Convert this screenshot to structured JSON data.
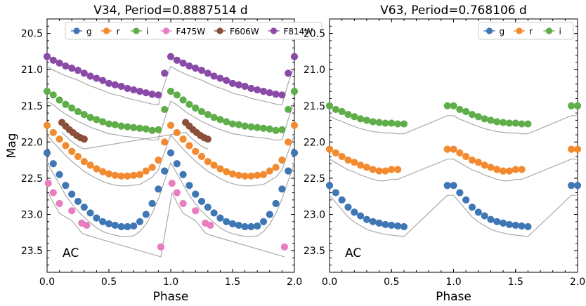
{
  "chart_data": [
    {
      "type": "scatter",
      "title": "V34,  Period=0.8887514 d",
      "xlabel": "Phase",
      "ylabel": "Mag",
      "xlim": [
        0.0,
        2.0
      ],
      "ylim": [
        23.8,
        20.3
      ],
      "y_inverted": true,
      "xticks": [
        "0.0",
        "0.5",
        "1.0",
        "1.5",
        "2.0"
      ],
      "yticks": [
        "20.5",
        "21.0",
        "21.5",
        "22.0",
        "22.5",
        "23.0",
        "23.5"
      ],
      "annotation": "AC",
      "legend": {
        "placement": "top",
        "entries": [
          {
            "label": "g",
            "color": "#3f76b4"
          },
          {
            "label": "r",
            "color": "#f28a30"
          },
          {
            "label": "i",
            "color": "#5fae4a"
          },
          {
            "label": "F475W",
            "color": "#e87dc0"
          },
          {
            "label": "F606W",
            "color": "#8c4f3a"
          },
          {
            "label": "F814W",
            "color": "#8a4aa8"
          }
        ]
      },
      "series": [
        {
          "name": "F814W",
          "color": "#8a4aa8",
          "x": [
            0.0,
            0.05,
            0.1,
            0.15,
            0.2,
            0.25,
            0.3,
            0.35,
            0.4,
            0.45,
            0.5,
            0.55,
            0.6,
            0.65,
            0.7,
            0.75,
            0.8,
            0.85,
            0.9,
            0.95,
            1.0,
            1.05,
            1.1,
            1.15,
            1.2,
            1.25,
            1.3,
            1.35,
            1.4,
            1.45,
            1.5,
            1.55,
            1.6,
            1.65,
            1.7,
            1.75,
            1.8,
            1.85,
            1.9,
            1.95,
            2.0
          ],
          "y": [
            20.82,
            20.87,
            20.91,
            20.95,
            20.98,
            21.01,
            21.05,
            21.09,
            21.12,
            21.15,
            21.19,
            21.21,
            21.23,
            21.26,
            21.28,
            21.3,
            21.32,
            21.34,
            21.35,
            21.05,
            20.82,
            20.87,
            20.91,
            20.95,
            20.98,
            21.01,
            21.05,
            21.09,
            21.12,
            21.15,
            21.19,
            21.21,
            21.23,
            21.26,
            21.28,
            21.3,
            21.32,
            21.34,
            21.35,
            21.05,
            20.82
          ]
        },
        {
          "name": "i",
          "color": "#5fae4a",
          "x": [
            0.0,
            0.05,
            0.1,
            0.15,
            0.2,
            0.25,
            0.3,
            0.35,
            0.4,
            0.45,
            0.5,
            0.55,
            0.6,
            0.65,
            0.7,
            0.75,
            0.8,
            0.85,
            0.9,
            0.95,
            1.0,
            1.05,
            1.1,
            1.15,
            1.2,
            1.25,
            1.3,
            1.35,
            1.4,
            1.45,
            1.5,
            1.55,
            1.6,
            1.65,
            1.7,
            1.75,
            1.8,
            1.85,
            1.9,
            1.95,
            2.0
          ],
          "y": [
            21.3,
            21.35,
            21.42,
            21.48,
            21.53,
            21.58,
            21.62,
            21.66,
            21.69,
            21.72,
            21.75,
            21.76,
            21.78,
            21.79,
            21.8,
            21.81,
            21.82,
            21.84,
            21.83,
            21.55,
            21.3,
            21.35,
            21.42,
            21.48,
            21.53,
            21.58,
            21.62,
            21.66,
            21.69,
            21.72,
            21.75,
            21.76,
            21.78,
            21.79,
            21.8,
            21.81,
            21.82,
            21.84,
            21.83,
            21.55,
            21.3
          ]
        },
        {
          "name": "F606W",
          "color": "#8c4f3a",
          "x": [
            0.12,
            0.15,
            0.18,
            0.21,
            0.24,
            0.27,
            0.3,
            1.12,
            1.15,
            1.18,
            1.21,
            1.24,
            1.27,
            1.3
          ],
          "y": [
            21.73,
            21.78,
            21.83,
            21.87,
            21.91,
            21.94,
            21.96,
            21.73,
            21.78,
            21.83,
            21.87,
            21.91,
            21.94,
            21.96
          ]
        },
        {
          "name": "r",
          "color": "#f28a30",
          "x": [
            0.0,
            0.05,
            0.1,
            0.15,
            0.2,
            0.25,
            0.3,
            0.35,
            0.4,
            0.45,
            0.5,
            0.55,
            0.6,
            0.65,
            0.7,
            0.75,
            0.8,
            0.85,
            0.9,
            0.95,
            1.0,
            1.05,
            1.1,
            1.15,
            1.2,
            1.25,
            1.3,
            1.35,
            1.4,
            1.45,
            1.5,
            1.55,
            1.6,
            1.65,
            1.7,
            1.75,
            1.8,
            1.85,
            1.9,
            1.95,
            2.0
          ],
          "y": [
            21.77,
            21.87,
            21.96,
            22.05,
            22.13,
            22.2,
            22.27,
            22.32,
            22.37,
            22.41,
            22.44,
            22.46,
            22.47,
            22.47,
            22.46,
            22.45,
            22.4,
            22.35,
            22.25,
            22.0,
            21.77,
            21.87,
            21.96,
            22.05,
            22.13,
            22.2,
            22.27,
            22.32,
            22.37,
            22.41,
            22.44,
            22.46,
            22.47,
            22.47,
            22.46,
            22.45,
            22.4,
            22.35,
            22.25,
            22.0,
            21.77
          ]
        },
        {
          "name": "g",
          "color": "#3f76b4",
          "x": [
            0.0,
            0.05,
            0.1,
            0.15,
            0.2,
            0.25,
            0.3,
            0.35,
            0.4,
            0.45,
            0.5,
            0.55,
            0.6,
            0.65,
            0.7,
            0.75,
            0.8,
            0.85,
            0.9,
            0.95,
            1.0,
            1.05,
            1.1,
            1.15,
            1.2,
            1.25,
            1.3,
            1.35,
            1.4,
            1.45,
            1.5,
            1.55,
            1.6,
            1.65,
            1.7,
            1.75,
            1.8,
            1.85,
            1.9,
            1.95,
            2.0
          ],
          "y": [
            22.15,
            22.3,
            22.45,
            22.6,
            22.72,
            22.82,
            22.9,
            22.98,
            23.05,
            23.1,
            23.13,
            23.15,
            23.17,
            23.17,
            23.16,
            23.1,
            23.0,
            22.85,
            22.65,
            22.4,
            22.15,
            22.3,
            22.45,
            22.6,
            22.72,
            22.82,
            22.9,
            22.98,
            23.05,
            23.1,
            23.13,
            23.15,
            23.17,
            23.17,
            23.16,
            23.1,
            23.0,
            22.85,
            22.65,
            22.4,
            22.15
          ]
        },
        {
          "name": "F475W",
          "color": "#e87dc0",
          "x": [
            0.01,
            0.05,
            0.1,
            0.2,
            0.28,
            0.32,
            0.92,
            1.01,
            1.05,
            1.1,
            1.2,
            1.28,
            1.32,
            1.92
          ],
          "y": [
            22.57,
            22.7,
            22.85,
            22.95,
            23.12,
            23.15,
            23.45,
            22.57,
            22.7,
            22.85,
            22.95,
            23.12,
            23.15,
            23.45
          ]
        }
      ]
    },
    {
      "type": "scatter",
      "title": "V63,  Period=0.768106 d",
      "xlabel": "Phase",
      "ylabel": "",
      "xlim": [
        0.0,
        2.0
      ],
      "ylim": [
        23.8,
        20.3
      ],
      "y_inverted": true,
      "xticks": [
        "0.0",
        "0.5",
        "1.0",
        "1.5",
        "2.0"
      ],
      "yticks": [
        "20.5",
        "21.0",
        "21.5",
        "22.0",
        "22.5",
        "23.0",
        "23.5"
      ],
      "annotation": "AC",
      "legend": {
        "placement": "top-right",
        "entries": [
          {
            "label": "g",
            "color": "#3f76b4"
          },
          {
            "label": "r",
            "color": "#f28a30"
          },
          {
            "label": "i",
            "color": "#5fae4a"
          }
        ]
      },
      "series": [
        {
          "name": "i",
          "color": "#5fae4a",
          "x": [
            0.0,
            0.05,
            0.1,
            0.15,
            0.2,
            0.25,
            0.3,
            0.35,
            0.4,
            0.45,
            0.5,
            0.55,
            0.6,
            0.95,
            1.0,
            1.05,
            1.1,
            1.15,
            1.2,
            1.25,
            1.3,
            1.35,
            1.4,
            1.45,
            1.5,
            1.55,
            1.6,
            1.95,
            2.0
          ],
          "y": [
            21.5,
            21.55,
            21.58,
            21.62,
            21.65,
            21.68,
            21.7,
            21.72,
            21.73,
            21.74,
            21.74,
            21.75,
            21.75,
            21.5,
            21.5,
            21.55,
            21.58,
            21.62,
            21.65,
            21.68,
            21.7,
            21.72,
            21.73,
            21.74,
            21.74,
            21.75,
            21.75,
            21.5,
            21.5
          ]
        },
        {
          "name": "r",
          "color": "#f28a30",
          "x": [
            0.0,
            0.05,
            0.1,
            0.15,
            0.2,
            0.25,
            0.3,
            0.35,
            0.4,
            0.45,
            0.5,
            0.55,
            0.95,
            1.0,
            1.05,
            1.1,
            1.15,
            1.2,
            1.25,
            1.3,
            1.35,
            1.4,
            1.45,
            1.5,
            1.55,
            1.95,
            2.0
          ],
          "y": [
            22.1,
            22.15,
            22.2,
            22.25,
            22.28,
            22.32,
            22.35,
            22.38,
            22.4,
            22.4,
            22.38,
            22.38,
            22.1,
            22.1,
            22.15,
            22.2,
            22.25,
            22.28,
            22.32,
            22.35,
            22.38,
            22.4,
            22.4,
            22.38,
            22.38,
            22.1,
            22.1
          ]
        },
        {
          "name": "g",
          "color": "#3f76b4",
          "x": [
            0.0,
            0.05,
            0.1,
            0.15,
            0.2,
            0.25,
            0.3,
            0.35,
            0.4,
            0.45,
            0.5,
            0.55,
            0.6,
            0.95,
            1.0,
            1.05,
            1.1,
            1.15,
            1.2,
            1.25,
            1.3,
            1.35,
            1.4,
            1.45,
            1.5,
            1.55,
            1.6,
            1.95,
            2.0
          ],
          "y": [
            22.6,
            22.7,
            22.8,
            22.9,
            22.97,
            23.02,
            23.07,
            23.1,
            23.12,
            23.14,
            23.15,
            23.16,
            23.17,
            22.6,
            22.6,
            22.7,
            22.8,
            22.9,
            22.97,
            23.02,
            23.07,
            23.1,
            23.12,
            23.14,
            23.15,
            23.16,
            23.17,
            22.6,
            22.6
          ]
        }
      ]
    }
  ]
}
